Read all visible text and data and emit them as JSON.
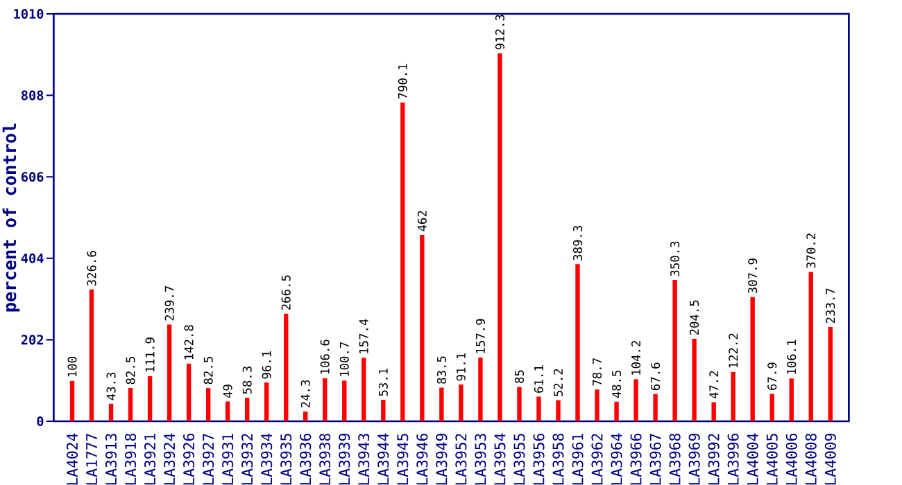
{
  "chart_data": {
    "type": "bar",
    "ylabel": "percent of control",
    "categories": [
      "LA4024",
      "LA1777",
      "LA3913",
      "LA3918",
      "LA3921",
      "LA3924",
      "LA3926",
      "LA3927",
      "LA3931",
      "LA3932",
      "LA3934",
      "LA3935",
      "LA3936",
      "LA3938",
      "LA3939",
      "LA3943",
      "LA3944",
      "LA3945",
      "LA3946",
      "LA3949",
      "LA3952",
      "LA3953",
      "LA3954",
      "LA3955",
      "LA3956",
      "LA3958",
      "LA3961",
      "LA3962",
      "LA3964",
      "LA3966",
      "LA3967",
      "LA3968",
      "LA3969",
      "LA3992",
      "LA3996",
      "LA4004",
      "LA4005",
      "LA4006",
      "LA4008",
      "LA4009"
    ],
    "values": [
      100,
      326.6,
      43.3,
      82.5,
      111.9,
      239.7,
      142.8,
      82.5,
      49,
      58.3,
      96.1,
      266.5,
      24.3,
      106.6,
      100.7,
      157.4,
      53.1,
      790.1,
      462,
      83.5,
      91.1,
      157.9,
      912.3,
      85,
      61.1,
      52.2,
      389.3,
      78.7,
      48.5,
      104.2,
      67.6,
      350.3,
      204.5,
      47.2,
      122.2,
      307.9,
      67.9,
      106.1,
      370.2,
      233.7
    ],
    "color": "#ff0000",
    "ylim": [
      0,
      1010
    ],
    "yticks": [
      0,
      202,
      404,
      606,
      808,
      1010
    ],
    "data_labels": true
  }
}
